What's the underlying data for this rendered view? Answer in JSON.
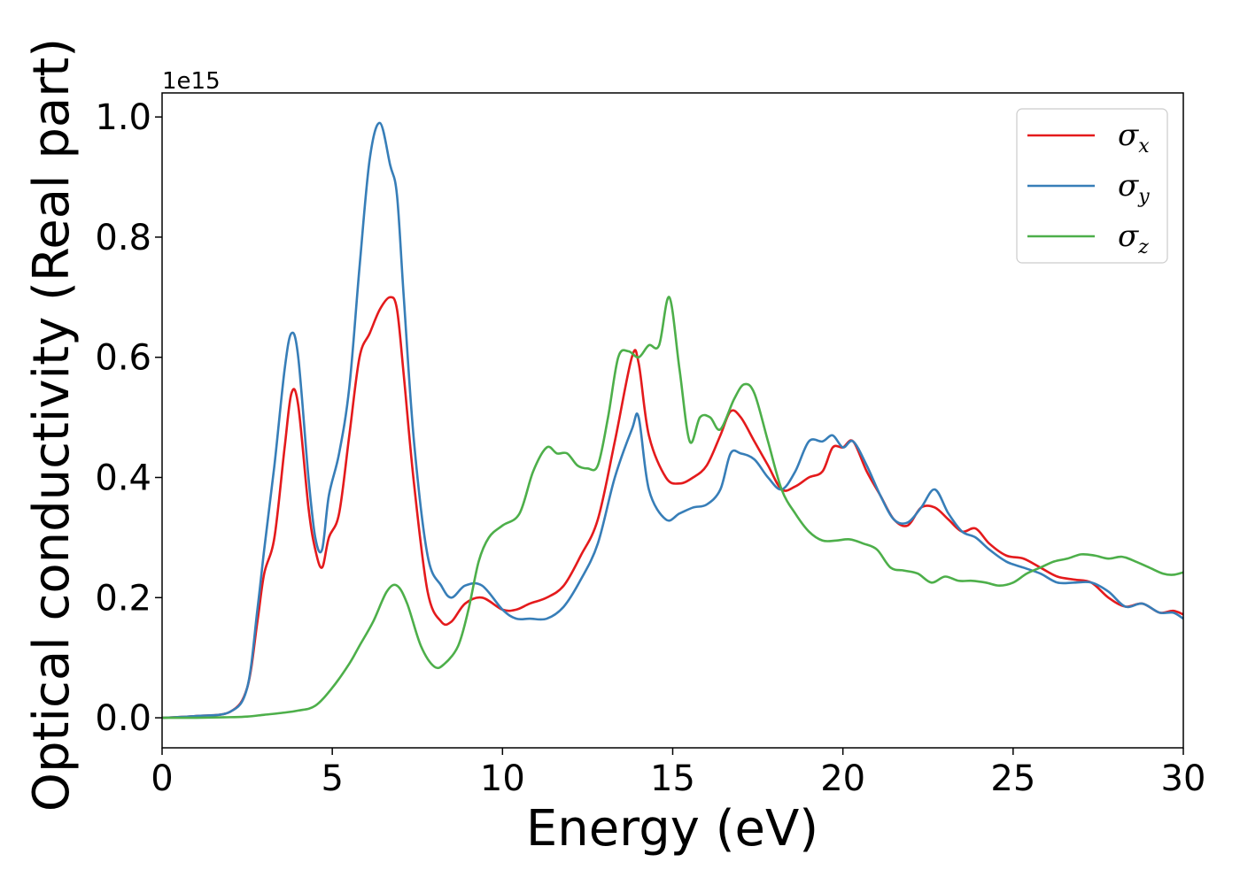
{
  "chart_data": {
    "type": "line",
    "xlabel": "Energy (eV)",
    "ylabel": "Optical conductivity (Real part)",
    "y_offset_text": "1e15",
    "xlim": [
      0,
      30
    ],
    "ylim": [
      -0.05,
      1.04
    ],
    "xticks": [
      0,
      5,
      10,
      15,
      20,
      25,
      30
    ],
    "xtick_labels": [
      "0",
      "5",
      "10",
      "15",
      "20",
      "25",
      "30"
    ],
    "yticks": [
      0.0,
      0.2,
      0.4,
      0.6,
      0.8,
      1.0
    ],
    "ytick_labels": [
      "0.0",
      "0.2",
      "0.4",
      "0.6",
      "0.8",
      "1.0"
    ],
    "grid": false,
    "legend_position": "top-right",
    "series": [
      {
        "name": "σx",
        "symbol": "σ",
        "subscript": "x",
        "color": "#e41a1c",
        "x": [
          0,
          1,
          2,
          2.5,
          2.8,
          3.0,
          3.3,
          3.6,
          3.8,
          4.0,
          4.3,
          4.5,
          4.7,
          4.9,
          5.2,
          5.5,
          5.8,
          6.1,
          6.4,
          6.7,
          6.9,
          7.1,
          7.4,
          7.8,
          8.2,
          8.5,
          8.9,
          9.4,
          10.0,
          10.4,
          10.8,
          11.3,
          11.8,
          12.3,
          12.8,
          13.3,
          13.8,
          14.0,
          14.3,
          14.8,
          15.2,
          15.6,
          16.0,
          16.4,
          16.7,
          17.0,
          17.4,
          17.8,
          18.2,
          18.6,
          19.0,
          19.4,
          19.7,
          20.0,
          20.3,
          20.7,
          21.1,
          21.5,
          21.9,
          22.3,
          22.7,
          23.1,
          23.5,
          23.9,
          24.3,
          24.8,
          25.3,
          25.8,
          26.3,
          26.8,
          27.3,
          27.8,
          28.3,
          28.8,
          29.3,
          29.7,
          30.0
        ],
        "y": [
          0.0,
          0.003,
          0.01,
          0.05,
          0.16,
          0.24,
          0.3,
          0.45,
          0.54,
          0.52,
          0.35,
          0.28,
          0.25,
          0.3,
          0.34,
          0.47,
          0.6,
          0.64,
          0.68,
          0.7,
          0.68,
          0.57,
          0.39,
          0.21,
          0.16,
          0.16,
          0.19,
          0.2,
          0.18,
          0.18,
          0.19,
          0.2,
          0.22,
          0.27,
          0.33,
          0.46,
          0.6,
          0.59,
          0.47,
          0.4,
          0.39,
          0.4,
          0.42,
          0.47,
          0.51,
          0.5,
          0.46,
          0.42,
          0.38,
          0.385,
          0.4,
          0.41,
          0.45,
          0.45,
          0.46,
          0.41,
          0.37,
          0.33,
          0.32,
          0.35,
          0.35,
          0.33,
          0.31,
          0.315,
          0.29,
          0.27,
          0.265,
          0.25,
          0.235,
          0.23,
          0.225,
          0.2,
          0.185,
          0.19,
          0.175,
          0.178,
          0.172
        ]
      },
      {
        "name": "σy",
        "symbol": "σ",
        "subscript": "y",
        "color": "#377eb8",
        "x": [
          0,
          1,
          2,
          2.5,
          2.8,
          3.0,
          3.3,
          3.6,
          3.8,
          4.0,
          4.3,
          4.5,
          4.7,
          4.9,
          5.2,
          5.5,
          5.8,
          6.1,
          6.4,
          6.7,
          6.9,
          7.1,
          7.4,
          7.8,
          8.2,
          8.5,
          8.9,
          9.4,
          10.0,
          10.4,
          10.8,
          11.3,
          11.8,
          12.3,
          12.8,
          13.3,
          13.8,
          14.0,
          14.3,
          14.8,
          15.2,
          15.6,
          16.0,
          16.4,
          16.7,
          17.0,
          17.4,
          17.8,
          18.2,
          18.6,
          19.0,
          19.4,
          19.7,
          20.0,
          20.3,
          20.7,
          21.1,
          21.5,
          21.9,
          22.3,
          22.7,
          23.1,
          23.5,
          23.9,
          24.3,
          24.8,
          25.3,
          25.8,
          26.3,
          26.8,
          27.3,
          27.8,
          28.3,
          28.8,
          29.3,
          29.7,
          30.0
        ],
        "y": [
          0.0,
          0.003,
          0.01,
          0.05,
          0.18,
          0.28,
          0.42,
          0.58,
          0.64,
          0.6,
          0.4,
          0.3,
          0.28,
          0.37,
          0.44,
          0.55,
          0.75,
          0.93,
          0.99,
          0.92,
          0.87,
          0.7,
          0.46,
          0.27,
          0.22,
          0.2,
          0.22,
          0.22,
          0.18,
          0.165,
          0.165,
          0.165,
          0.185,
          0.23,
          0.29,
          0.4,
          0.48,
          0.5,
          0.38,
          0.33,
          0.34,
          0.35,
          0.355,
          0.38,
          0.44,
          0.44,
          0.43,
          0.4,
          0.38,
          0.41,
          0.46,
          0.46,
          0.47,
          0.45,
          0.46,
          0.42,
          0.37,
          0.33,
          0.325,
          0.35,
          0.38,
          0.34,
          0.31,
          0.3,
          0.28,
          0.26,
          0.25,
          0.24,
          0.225,
          0.225,
          0.225,
          0.21,
          0.185,
          0.19,
          0.175,
          0.175,
          0.165
        ]
      },
      {
        "name": "σz",
        "symbol": "σ",
        "subscript": "z",
        "color": "#4daf4a",
        "x": [
          0,
          1,
          2,
          2.5,
          3.0,
          3.5,
          4.0,
          4.5,
          5.0,
          5.5,
          5.8,
          6.2,
          6.6,
          6.9,
          7.2,
          7.6,
          8.0,
          8.3,
          8.7,
          9.0,
          9.3,
          9.6,
          10.0,
          10.5,
          10.9,
          11.3,
          11.6,
          11.9,
          12.2,
          12.5,
          12.8,
          13.1,
          13.4,
          13.7,
          14.0,
          14.3,
          14.6,
          14.9,
          15.2,
          15.5,
          15.8,
          16.1,
          16.4,
          16.8,
          17.1,
          17.4,
          17.8,
          18.2,
          18.6,
          19.0,
          19.4,
          19.8,
          20.2,
          20.6,
          21.0,
          21.4,
          21.8,
          22.2,
          22.6,
          23.0,
          23.4,
          23.8,
          24.2,
          24.6,
          25.0,
          25.4,
          25.8,
          26.2,
          26.6,
          27.0,
          27.4,
          27.8,
          28.2,
          28.6,
          29.0,
          29.4,
          29.7,
          30.0
        ],
        "y": [
          0.0,
          0.0,
          0.001,
          0.002,
          0.005,
          0.008,
          0.012,
          0.02,
          0.05,
          0.09,
          0.12,
          0.16,
          0.21,
          0.22,
          0.19,
          0.12,
          0.085,
          0.09,
          0.12,
          0.18,
          0.26,
          0.3,
          0.32,
          0.34,
          0.41,
          0.45,
          0.44,
          0.44,
          0.42,
          0.415,
          0.42,
          0.5,
          0.6,
          0.61,
          0.6,
          0.62,
          0.62,
          0.7,
          0.58,
          0.46,
          0.5,
          0.5,
          0.48,
          0.53,
          0.555,
          0.54,
          0.46,
          0.38,
          0.34,
          0.31,
          0.295,
          0.295,
          0.297,
          0.29,
          0.28,
          0.25,
          0.245,
          0.24,
          0.225,
          0.235,
          0.228,
          0.228,
          0.225,
          0.22,
          0.225,
          0.24,
          0.25,
          0.26,
          0.265,
          0.272,
          0.27,
          0.265,
          0.268,
          0.26,
          0.25,
          0.24,
          0.238,
          0.242
        ]
      }
    ]
  }
}
